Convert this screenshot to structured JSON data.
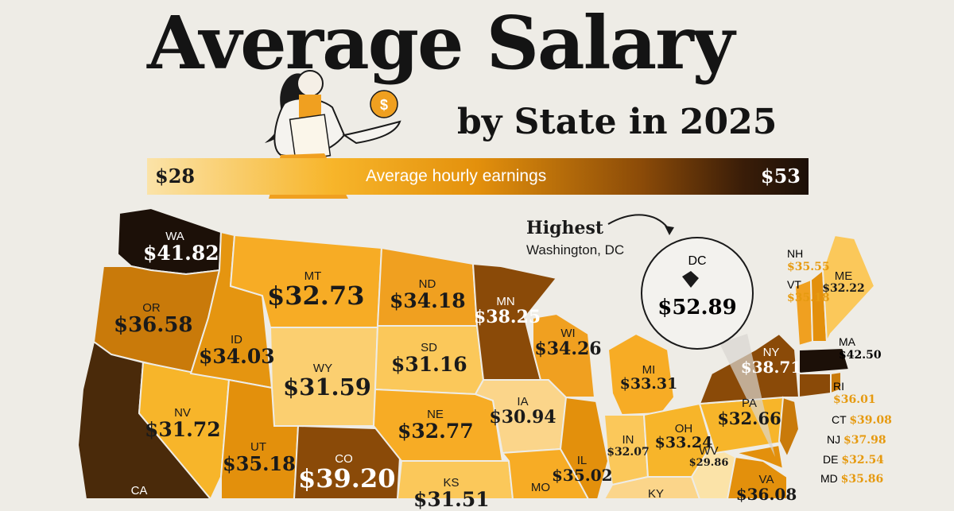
{
  "title": "Average Salary",
  "subtitle": "by State in 2025",
  "legend": {
    "low": "$28",
    "label": "Average hourly earnings",
    "high": "$53"
  },
  "highlight": {
    "title": "Highest",
    "location": "Washington, DC",
    "abbr": "DC",
    "value": "$52.89"
  },
  "colors": {
    "background": "#eeece6",
    "lightest": "#fbe3a8",
    "mid": "#f0a020",
    "dark": "#8a4a08",
    "darkest": "#1c1008"
  },
  "states": {
    "WA": "$41.82",
    "OR": "$36.58",
    "CA": "",
    "ID": "$34.03",
    "NV": "$31.72",
    "MT": "$32.73",
    "WY": "$31.59",
    "UT": "$35.18",
    "CO": "$39.20",
    "ND": "$34.18",
    "SD": "$31.16",
    "NE": "$32.77",
    "KS": "$31.51",
    "MN": "$38.25",
    "IA": "$30.94",
    "MO": "",
    "WI": "$34.26",
    "IL": "$35.02",
    "MI": "$33.31",
    "IN": "$32.07",
    "OH": "$33.24",
    "KY": "",
    "WV": "$29.86",
    "VA": "$36.08",
    "PA": "$32.66",
    "NY": "$38.71",
    "ME": "$32.22",
    "NH": "$35.55",
    "VT": "$35.18",
    "MA": "$42.50",
    "RI": "$36.01",
    "CT": "$39.08",
    "NJ": "$37.98",
    "DE": "$32.54",
    "MD": "$35.86"
  },
  "labels": {
    "WA": "WA",
    "OR": "OR",
    "CA": "CA",
    "ID": "ID",
    "NV": "NV",
    "MT": "MT",
    "WY": "WY",
    "UT": "UT",
    "CO": "CO",
    "ND": "ND",
    "SD": "SD",
    "NE": "NE",
    "KS": "KS",
    "MN": "MN",
    "IA": "IA",
    "MO": "MO",
    "WI": "WI",
    "IL": "IL",
    "MI": "MI",
    "IN": "IN",
    "OH": "OH",
    "KY": "KY",
    "WV": "WV",
    "VA": "VA",
    "PA": "PA",
    "NY": "NY",
    "ME": "ME",
    "NH": "NH",
    "VT": "VT",
    "MA": "MA",
    "RI": "RI",
    "CT": "CT",
    "NJ": "NJ",
    "DE": "DE",
    "MD": "MD"
  }
}
